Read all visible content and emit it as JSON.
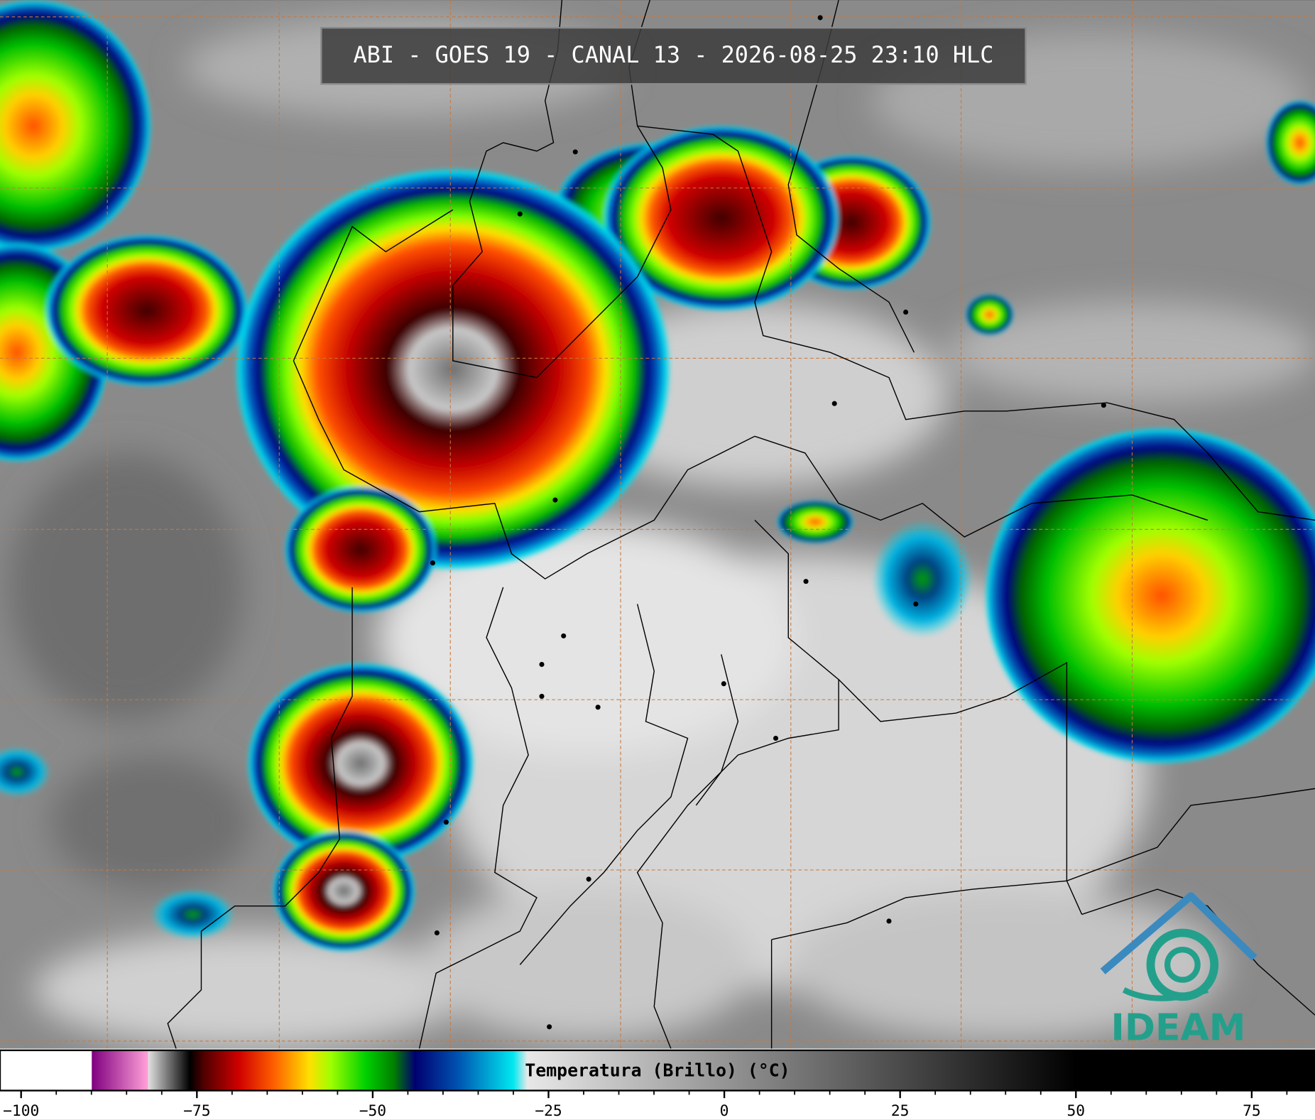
{
  "header": {
    "title": "ABI - GOES 19 - CANAL 13 - 2026-08-25 23:10 HLC"
  },
  "colorbar": {
    "label": "Temperatura (Brillo) (°C)",
    "lim": [
      -103,
      84
    ],
    "ticks": [
      {
        "value": -100,
        "label": "−100"
      },
      {
        "value": -75,
        "label": "−75"
      },
      {
        "value": -50,
        "label": "−50"
      },
      {
        "value": -25,
        "label": "−25"
      },
      0,
      25,
      50,
      75
    ],
    "minor_ticks": [
      -95,
      -90,
      -85,
      -80,
      -70,
      -65,
      -60,
      -55,
      -45,
      -40,
      -35,
      -30,
      -20,
      -15,
      -10,
      -5,
      5,
      10,
      15,
      20,
      30,
      35,
      40,
      45,
      55,
      60,
      65,
      70,
      80
    ],
    "stops": [
      {
        "value": -90,
        "color": "#ffffff"
      },
      {
        "value": -89.9,
        "color": "#800080"
      },
      {
        "value": -82,
        "color": "#ffa0d8"
      },
      {
        "value": -81.9,
        "color": "#e0e0e0"
      },
      {
        "value": -76,
        "color": "#000000"
      },
      {
        "value": -74,
        "color": "#500000"
      },
      {
        "value": -69,
        "color": "#d00000"
      },
      {
        "value": -64,
        "color": "#ff6000"
      },
      {
        "value": -59,
        "color": "#ffe000"
      },
      {
        "value": -56,
        "color": "#a0ff00"
      },
      {
        "value": -51,
        "color": "#00d000"
      },
      {
        "value": -47,
        "color": "#008000"
      },
      {
        "value": -44,
        "color": "#000070"
      },
      {
        "value": -38,
        "color": "#0050b0"
      },
      {
        "value": -30,
        "color": "#00e8f0"
      },
      {
        "value": -28,
        "color": "#e8e8e8"
      },
      {
        "value": 50,
        "color": "#000000"
      }
    ]
  },
  "logo": {
    "text": "IDEAM"
  }
}
